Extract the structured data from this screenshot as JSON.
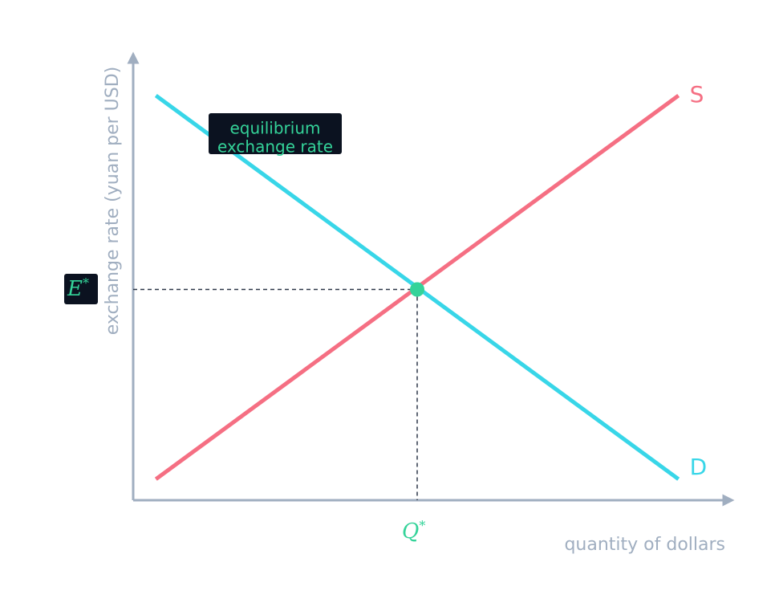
{
  "chart_data": {
    "type": "line",
    "title": "",
    "xlabel": "quantity of dollars",
    "ylabel": "exchange rate (yuan per USD)",
    "xlim": [
      0,
      10
    ],
    "ylim": [
      0,
      10
    ],
    "grid": false,
    "series": [
      {
        "name": "D",
        "color": "#38d6e8",
        "x": [
          0.4,
          9.6
        ],
        "y": [
          9.6,
          0.5
        ]
      },
      {
        "name": "S",
        "color": "#f56f83",
        "x": [
          0.4,
          9.6
        ],
        "y": [
          0.5,
          9.6
        ]
      }
    ],
    "equilibrium": {
      "x": 5,
      "y": 5,
      "color": "#34d399",
      "x_label": "Q",
      "y_label": "E",
      "marker": "*"
    },
    "annotation": {
      "line1": "equilibrium",
      "line2": "exchange rate"
    }
  },
  "colors": {
    "axis": "#a0aec0",
    "label_box": "#0b1220",
    "guide": "#2d3748",
    "equilibrium": "#34d399"
  }
}
